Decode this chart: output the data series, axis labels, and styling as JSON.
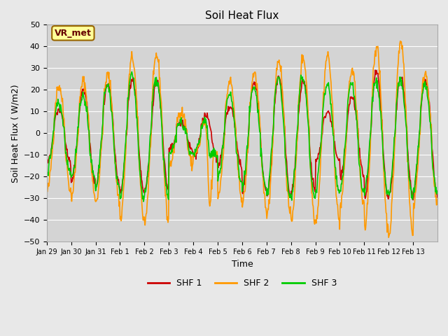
{
  "title": "Soil Heat Flux",
  "ylabel": "Soil Heat Flux ( W/m2)",
  "xlabel": "Time",
  "ylim": [
    -50,
    50
  ],
  "yticks": [
    -50,
    -40,
    -30,
    -20,
    -10,
    0,
    10,
    20,
    30,
    40,
    50
  ],
  "xtick_labels": [
    "Jan 29",
    "Jan 30",
    "Jan 31",
    "Feb 1",
    "Feb 2",
    "Feb 3",
    "Feb 4",
    "Feb 5",
    "Feb 6",
    "Feb 7",
    "Feb 8",
    "Feb 9",
    "Feb 10",
    "Feb 11",
    "Feb 12",
    "Feb 13"
  ],
  "xtick_positions": [
    0,
    1,
    2,
    3,
    4,
    5,
    6,
    7,
    8,
    9,
    10,
    11,
    12,
    13,
    14,
    15
  ],
  "legend_labels": [
    "SHF 1",
    "SHF 2",
    "SHF 3"
  ],
  "colors": {
    "SHF1": "#cc0000",
    "SHF2": "#ff9900",
    "SHF3": "#00cc00"
  },
  "line_widths": {
    "SHF1": 1.2,
    "SHF2": 1.2,
    "SHF3": 1.2
  },
  "bg_color": "#e8e8e8",
  "plot_bg_color": "#d4d4d4",
  "grid_color": "#ffffff",
  "annotation_text": "VR_met",
  "annotation_facecolor": "#ffff99",
  "annotation_edgecolor": "#996600",
  "annotation_textcolor": "#660000"
}
